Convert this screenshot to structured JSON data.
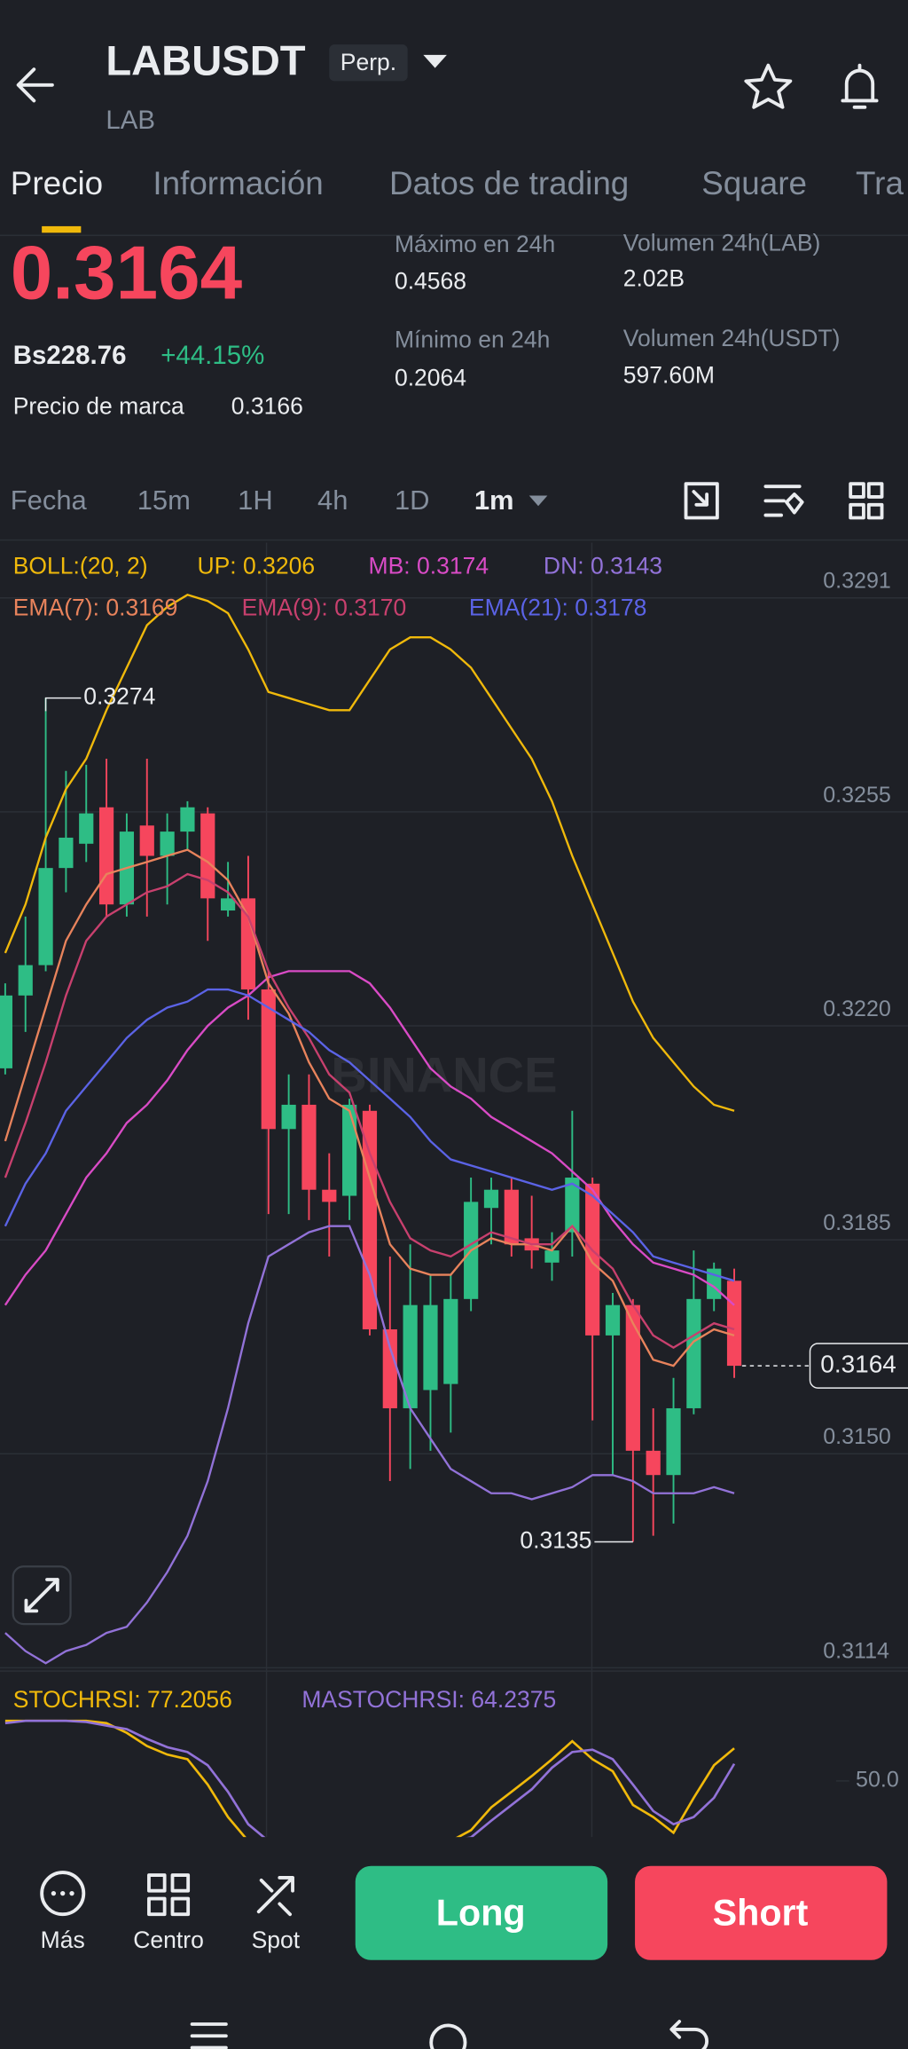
{
  "header": {
    "symbol": "LABUSDT",
    "badge": "Perp.",
    "base": "LAB"
  },
  "tabs": [
    "Precio",
    "Información",
    "Datos de trading",
    "Square",
    "Tra"
  ],
  "price": {
    "last": "0.3164",
    "fiat": "Bs228.76",
    "change": "+44.15%",
    "mark_label": "Precio de marca",
    "mark": "0.3166"
  },
  "stats": [
    {
      "label": "Máximo en 24h",
      "value": "0.4568"
    },
    {
      "label": "Volumen 24h(LAB)",
      "value": "2.02B"
    },
    {
      "label": "Mínimo en 24h",
      "value": "0.2064"
    },
    {
      "label": "Volumen 24h(USDT)",
      "value": "597.60M"
    }
  ],
  "intervals": [
    "Fecha",
    "15m",
    "1H",
    "4h",
    "1D",
    "1m"
  ],
  "watermark": "BINANCE",
  "chart_data": [
    {
      "type": "candlestick",
      "indicator": "BOLL:(20, 2)",
      "up_color": "#2ebd85",
      "down_color": "#f6465d",
      "open": [
        0.3213,
        0.3225,
        0.323,
        0.3246,
        0.325,
        0.3256,
        0.324,
        0.3253,
        0.3248,
        0.3252,
        0.3255,
        0.3239,
        0.3241,
        0.3226,
        0.3203,
        0.3207,
        0.3193,
        0.3192,
        0.3206,
        0.317,
        0.3157,
        0.316,
        0.3161,
        0.3175,
        0.319,
        0.3193,
        0.3185,
        0.3181,
        0.3186,
        0.3194,
        0.3169,
        0.3174,
        0.315,
        0.3146,
        0.3157,
        0.3175,
        0.3178
      ],
      "high": [
        0.3227,
        0.3238,
        0.3274,
        0.3262,
        0.3263,
        0.3264,
        0.3255,
        0.3264,
        0.3255,
        0.3257,
        0.3256,
        0.3247,
        0.3248,
        0.3229,
        0.3212,
        0.3212,
        0.3199,
        0.3208,
        0.3207,
        0.3182,
        0.3184,
        0.3179,
        0.3179,
        0.3195,
        0.3195,
        0.3195,
        0.3192,
        0.3186,
        0.3206,
        0.3195,
        0.3176,
        0.3175,
        0.3157,
        0.3162,
        0.3183,
        0.3181,
        0.318
      ],
      "low": [
        0.3212,
        0.3219,
        0.3229,
        0.3242,
        0.3247,
        0.3238,
        0.3238,
        0.3238,
        0.324,
        0.3249,
        0.3234,
        0.3238,
        0.3221,
        0.3189,
        0.3189,
        0.3188,
        0.3182,
        0.3188,
        0.3169,
        0.3145,
        0.3147,
        0.315,
        0.3153,
        0.3173,
        0.3184,
        0.3182,
        0.318,
        0.3178,
        0.3182,
        0.3155,
        0.3146,
        0.3135,
        0.3136,
        0.3138,
        0.3156,
        0.3173,
        0.3162
      ],
      "close": [
        0.3225,
        0.323,
        0.3246,
        0.3251,
        0.3255,
        0.324,
        0.3252,
        0.3248,
        0.3252,
        0.3256,
        0.3241,
        0.3241,
        0.3226,
        0.3203,
        0.3207,
        0.3193,
        0.3191,
        0.3207,
        0.317,
        0.3157,
        0.3174,
        0.3174,
        0.3175,
        0.3191,
        0.3193,
        0.3184,
        0.3183,
        0.3183,
        0.3195,
        0.3169,
        0.3174,
        0.315,
        0.3146,
        0.3157,
        0.3175,
        0.318,
        0.3164
      ],
      "series": [
        {
          "name": "UP: 0.3206",
          "color": "#f0b90b",
          "values": [
            0.3232,
            0.324,
            0.3251,
            0.3259,
            0.3264,
            0.3272,
            0.3279,
            0.3286,
            0.3289,
            0.3291,
            0.329,
            0.3288,
            0.3282,
            0.3275,
            0.3274,
            0.3273,
            0.3272,
            0.3272,
            0.3277,
            0.3282,
            0.3284,
            0.3284,
            0.3282,
            0.3279,
            0.3274,
            0.3269,
            0.3264,
            0.3257,
            0.3248,
            0.324,
            0.3232,
            0.3224,
            0.3218,
            0.3214,
            0.321,
            0.3207,
            0.3206
          ]
        },
        {
          "name": "MB: 0.3174",
          "color": "#d94bc6",
          "values": [
            0.3174,
            0.3179,
            0.3183,
            0.3189,
            0.3195,
            0.3199,
            0.3204,
            0.3207,
            0.3211,
            0.3216,
            0.322,
            0.3223,
            0.3225,
            0.3228,
            0.3229,
            0.3229,
            0.3229,
            0.3229,
            0.3227,
            0.3223,
            0.3218,
            0.3213,
            0.321,
            0.3208,
            0.3205,
            0.3203,
            0.3201,
            0.3199,
            0.3196,
            0.3193,
            0.3188,
            0.3184,
            0.3181,
            0.318,
            0.3179,
            0.3177,
            0.3174
          ]
        },
        {
          "name": "DN: 0.3143",
          "color": "#9272d8",
          "values": [
            0.312,
            0.3117,
            0.3115,
            0.3117,
            0.3118,
            0.312,
            0.3121,
            0.3125,
            0.313,
            0.3136,
            0.3145,
            0.3157,
            0.3171,
            0.3182,
            0.3184,
            0.3186,
            0.3187,
            0.3187,
            0.3179,
            0.3167,
            0.3157,
            0.3152,
            0.3147,
            0.3145,
            0.3143,
            0.3143,
            0.3142,
            0.3143,
            0.3144,
            0.3146,
            0.3146,
            0.3145,
            0.3143,
            0.3143,
            0.3143,
            0.3144,
            0.3143
          ]
        },
        {
          "name": "EMA(7): 0.3169",
          "color": "#e8835c",
          "values": [
            0.3201,
            0.3212,
            0.3223,
            0.3234,
            0.324,
            0.3245,
            0.3246,
            0.3247,
            0.3248,
            0.3249,
            0.3247,
            0.3244,
            0.3238,
            0.3227,
            0.3222,
            0.3214,
            0.3208,
            0.3206,
            0.3195,
            0.3184,
            0.318,
            0.3179,
            0.3179,
            0.3183,
            0.3185,
            0.3184,
            0.3184,
            0.3183,
            0.3187,
            0.3181,
            0.3178,
            0.3171,
            0.3165,
            0.3164,
            0.3168,
            0.317,
            0.3169
          ]
        },
        {
          "name": "EMA(9): 0.3170",
          "color": "#c8406e",
          "values": [
            0.3195,
            0.3204,
            0.3214,
            0.3225,
            0.3234,
            0.3238,
            0.324,
            0.3242,
            0.3243,
            0.3245,
            0.3244,
            0.3242,
            0.3238,
            0.3229,
            0.3223,
            0.3218,
            0.3212,
            0.3209,
            0.3199,
            0.3191,
            0.3185,
            0.3183,
            0.3182,
            0.3184,
            0.3186,
            0.3185,
            0.3184,
            0.3184,
            0.3187,
            0.3183,
            0.318,
            0.3174,
            0.3169,
            0.3167,
            0.3169,
            0.3171,
            0.317
          ]
        },
        {
          "name": "EMA(21): 0.3178",
          "color": "#5b63e6",
          "values": [
            0.3187,
            0.3194,
            0.3199,
            0.3206,
            0.321,
            0.3214,
            0.3218,
            0.3221,
            0.3223,
            0.3224,
            0.3226,
            0.3226,
            0.3225,
            0.3223,
            0.3221,
            0.3219,
            0.3216,
            0.3214,
            0.3211,
            0.3208,
            0.3205,
            0.3201,
            0.3198,
            0.3197,
            0.3196,
            0.3195,
            0.3194,
            0.3193,
            0.3194,
            0.3192,
            0.3189,
            0.3186,
            0.3182,
            0.3181,
            0.318,
            0.3179,
            0.3178
          ]
        }
      ],
      "ylim": [
        0.31137,
        0.32996
      ],
      "yticks": [
        {
          "value": 0.32905,
          "label": "0.3291"
        },
        {
          "value": 0.325525,
          "label": "0.3255"
        },
        {
          "value": 0.322,
          "label": "0.3220"
        },
        {
          "value": 0.318475,
          "label": "0.3185"
        },
        {
          "value": 0.31495,
          "label": "0.3150"
        },
        {
          "value": 0.311425,
          "label": "0.3114"
        }
      ],
      "grid": true,
      "annotations": [
        {
          "value": 0.3274,
          "label": "0.3274"
        },
        {
          "value": 0.3135,
          "label": "0.3135"
        }
      ],
      "last_price": {
        "value": 0.3164,
        "label": "0.3164"
      }
    },
    {
      "type": "line",
      "series": [
        {
          "name": "STOCHRSI: 77.2056",
          "color": "#f0b90b",
          "values": [
            100,
            100,
            100,
            100,
            100,
            98,
            90,
            79,
            72,
            68,
            47,
            20,
            0,
            0,
            0,
            0,
            0,
            0,
            0,
            0,
            0,
            0,
            0,
            9,
            28,
            41,
            54,
            68,
            83,
            68,
            58,
            30,
            20,
            7,
            36,
            63,
            77.2056
          ]
        },
        {
          "name": "MASTOCHRSI: 64.2375",
          "color": "#9272d8",
          "values": [
            98,
            100,
            100,
            100,
            99,
            96,
            93,
            85,
            78,
            74,
            63,
            41,
            14,
            0,
            0,
            0,
            0,
            0,
            0,
            0,
            0,
            0,
            0,
            3,
            17,
            30,
            43,
            61,
            74,
            76,
            68,
            47,
            25,
            14,
            20,
            36,
            64.2375
          ]
        }
      ],
      "ylim": [
        0,
        100
      ],
      "yticks": [
        {
          "value": 50,
          "label": "50.0"
        }
      ]
    }
  ],
  "actions": [
    "Más",
    "Centro",
    "Spot"
  ],
  "buttons": {
    "long": "Long",
    "short": "Short"
  }
}
